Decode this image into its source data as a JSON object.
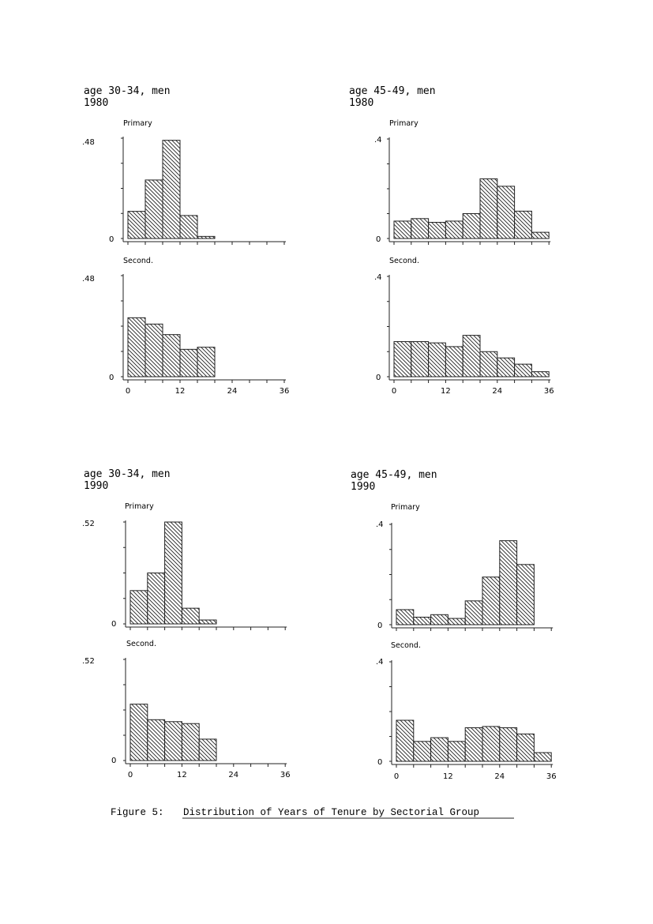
{
  "caption": {
    "label": "Figure 5:",
    "text": "Distribution of Years of Tenure by Sectorial Group"
  },
  "chart_data": [
    {
      "type": "bar",
      "title": "age 30-34, men",
      "subtitle": "1980",
      "x_ticks": [
        "0",
        "12",
        "24",
        "36"
      ],
      "xlim": [
        0,
        36
      ],
      "bin_width": 4,
      "panels": [
        {
          "label": "Primary",
          "ytick_top": ".48",
          "ylim": [
            0,
            0.48
          ],
          "values": [
            0.13,
            0.28,
            0.47,
            0.11,
            0.01
          ]
        },
        {
          "label": "Second.",
          "ytick_top": ".48",
          "ylim": [
            0,
            0.48
          ],
          "values": [
            0.28,
            0.25,
            0.2,
            0.13,
            0.14
          ]
        }
      ]
    },
    {
      "type": "bar",
      "title": "age 45-49, men",
      "subtitle": "1980",
      "x_ticks": [
        "0",
        "12",
        "24",
        "36"
      ],
      "xlim": [
        0,
        36
      ],
      "bin_width": 4,
      "panels": [
        {
          "label": "Primary",
          "ytick_top": ".4",
          "ylim": [
            0,
            0.4
          ],
          "values": [
            0.07,
            0.08,
            0.065,
            0.07,
            0.1,
            0.24,
            0.21,
            0.11,
            0.025
          ]
        },
        {
          "label": "Second.",
          "ytick_top": ".4",
          "ylim": [
            0,
            0.4
          ],
          "values": [
            0.14,
            0.14,
            0.135,
            0.12,
            0.165,
            0.1,
            0.075,
            0.05,
            0.02
          ]
        }
      ]
    },
    {
      "type": "bar",
      "title": "age 30-34, men",
      "subtitle": "1990",
      "x_ticks": [
        "0",
        "12",
        "24",
        "36"
      ],
      "xlim": [
        0,
        36
      ],
      "bin_width": 4,
      "panels": [
        {
          "label": "Primary",
          "ytick_top": ".52",
          "ylim": [
            0,
            0.52
          ],
          "values": [
            0.17,
            0.26,
            0.52,
            0.08,
            0.02
          ]
        },
        {
          "label": "Second.",
          "ytick_top": ".52",
          "ylim": [
            0,
            0.52
          ],
          "values": [
            0.29,
            0.21,
            0.2,
            0.19,
            0.11
          ]
        }
      ]
    },
    {
      "type": "bar",
      "title": "age 45-49, men",
      "subtitle": "1990",
      "x_ticks": [
        "0",
        "12",
        "24",
        "36"
      ],
      "xlim": [
        0,
        36
      ],
      "bin_width": 4,
      "panels": [
        {
          "label": "Primary",
          "ytick_top": ".4",
          "ylim": [
            0,
            0.4
          ],
          "values": [
            0.06,
            0.03,
            0.04,
            0.025,
            0.095,
            0.19,
            0.335,
            0.24
          ]
        },
        {
          "label": "Second.",
          "ytick_top": ".4",
          "ylim": [
            0,
            0.4
          ],
          "values": [
            0.165,
            0.08,
            0.095,
            0.08,
            0.135,
            0.14,
            0.135,
            0.11,
            0.035
          ]
        }
      ]
    }
  ]
}
